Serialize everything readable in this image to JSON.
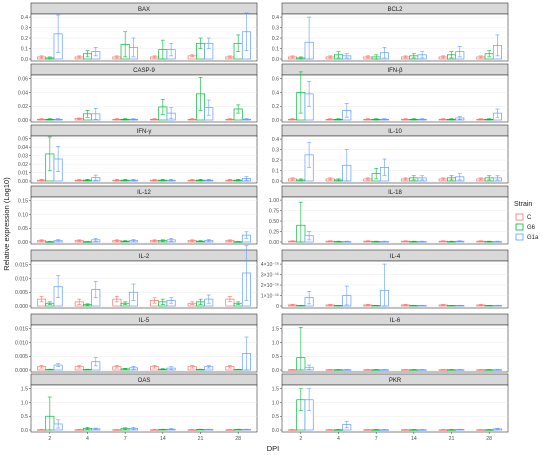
{
  "figure": {
    "ylabel": "Relative expression (Log10)",
    "xlabel": "DPI",
    "legend": {
      "title": "Strain",
      "items": [
        {
          "label": "C",
          "color": "#F8766D"
        },
        {
          "label": "G6",
          "color": "#00BA38"
        },
        {
          "label": "G1a",
          "color": "#619CFF"
        }
      ],
      "placement": "right"
    }
  },
  "chart_data": [
    {
      "type": "bar",
      "title": "BAX",
      "categories": [
        "2",
        "4",
        "7",
        "14",
        "21",
        "28"
      ],
      "yticks": [
        "0.0",
        "0.1",
        "0.2",
        "0.3",
        "0.4"
      ],
      "ylim": [
        0,
        0.45
      ],
      "series": [
        {
          "name": "C",
          "values": [
            0.02,
            0.02,
            0.02,
            0.02,
            0.03,
            0.02
          ]
        },
        {
          "name": "G6",
          "values": [
            0.01,
            0.05,
            0.14,
            0.09,
            0.15,
            0.15
          ]
        },
        {
          "name": "G1a",
          "values": [
            0.24,
            0.07,
            0.11,
            0.09,
            0.15,
            0.26
          ]
        }
      ],
      "errors": [
        [
          0.01,
          0.01,
          0.01,
          0.01,
          0.01,
          0.01
        ],
        [
          0.01,
          0.03,
          0.12,
          0.09,
          0.05,
          0.08
        ],
        [
          0.18,
          0.04,
          0.09,
          0.06,
          0.05,
          0.18
        ]
      ]
    },
    {
      "type": "bar",
      "title": "BCL2",
      "categories": [
        "2",
        "4",
        "7",
        "14",
        "21",
        "28"
      ],
      "yticks": [
        "0.0",
        "0.1",
        "0.2",
        "0.3",
        "0.4"
      ],
      "ylim": [
        0,
        0.45
      ],
      "series": [
        {
          "name": "C",
          "values": [
            0.02,
            0.02,
            0.02,
            0.02,
            0.02,
            0.02
          ]
        },
        {
          "name": "G6",
          "values": [
            0.01,
            0.04,
            0.02,
            0.03,
            0.04,
            0.05
          ]
        },
        {
          "name": "G1a",
          "values": [
            0.16,
            0.03,
            0.06,
            0.04,
            0.07,
            0.13
          ]
        }
      ],
      "errors": [
        [
          0.01,
          0.01,
          0.01,
          0.01,
          0.01,
          0.01
        ],
        [
          0.01,
          0.03,
          0.02,
          0.02,
          0.03,
          0.03
        ],
        [
          0.24,
          0.02,
          0.05,
          0.03,
          0.05,
          0.1
        ]
      ]
    },
    {
      "type": "bar",
      "title": "CASP-9",
      "categories": [
        "2",
        "4",
        "7",
        "14",
        "21",
        "28"
      ],
      "yticks": [
        "0.00",
        "0.02",
        "0.04",
        "0.06"
      ],
      "ylim": [
        0,
        0.07
      ],
      "series": [
        {
          "name": "C",
          "values": [
            0.001,
            0.002,
            0.001,
            0.001,
            0.001,
            0.001
          ]
        },
        {
          "name": "G6",
          "values": [
            0.001,
            0.009,
            0.001,
            0.019,
            0.038,
            0.016
          ]
        },
        {
          "name": "G1a",
          "values": [
            0.001,
            0.009,
            0.001,
            0.01,
            0.018,
            0.001
          ]
        }
      ],
      "errors": [
        [
          0.001,
          0.001,
          0.001,
          0.001,
          0.001,
          0.001
        ],
        [
          0.001,
          0.005,
          0.001,
          0.011,
          0.024,
          0.006
        ],
        [
          0.001,
          0.008,
          0.001,
          0.008,
          0.011,
          0.001
        ]
      ]
    },
    {
      "type": "bar",
      "title": "IFN-β",
      "categories": [
        "2",
        "4",
        "7",
        "14",
        "21",
        "28"
      ],
      "yticks": [
        "0.0",
        "0.2",
        "0.4",
        "0.6"
      ],
      "ylim": [
        0,
        0.75
      ],
      "series": [
        {
          "name": "C",
          "values": [
            0.01,
            0.01,
            0.01,
            0.01,
            0.01,
            0.01
          ]
        },
        {
          "name": "G6",
          "values": [
            0.4,
            0.01,
            0.01,
            0.01,
            0.01,
            0.01
          ]
        },
        {
          "name": "G1a",
          "values": [
            0.38,
            0.14,
            0.01,
            0.01,
            0.03,
            0.1
          ]
        }
      ],
      "errors": [
        [
          0.01,
          0.01,
          0.01,
          0.01,
          0.01,
          0.01
        ],
        [
          0.3,
          0.01,
          0.01,
          0.01,
          0.01,
          0.01
        ],
        [
          0.18,
          0.1,
          0.01,
          0.01,
          0.02,
          0.06
        ]
      ]
    },
    {
      "type": "bar",
      "title": "IFN-γ",
      "categories": [
        "2",
        "4",
        "7",
        "14",
        "21",
        "28"
      ],
      "yticks": [
        "0.00",
        "0.01",
        "0.02",
        "0.03",
        "0.04",
        "0.05"
      ],
      "ylim": [
        0,
        0.058
      ],
      "series": [
        {
          "name": "C",
          "values": [
            0.001,
            0.001,
            0.001,
            0.001,
            0.001,
            0.001
          ]
        },
        {
          "name": "G6",
          "values": [
            0.032,
            0.001,
            0.001,
            0.001,
            0.001,
            0.001
          ]
        },
        {
          "name": "G1a",
          "values": [
            0.026,
            0.004,
            0.001,
            0.001,
            0.001,
            0.003
          ]
        }
      ],
      "errors": [
        [
          0.001,
          0.001,
          0.001,
          0.001,
          0.001,
          0.001
        ],
        [
          0.02,
          0.001,
          0.001,
          0.001,
          0.001,
          0.001
        ],
        [
          0.015,
          0.003,
          0.001,
          0.001,
          0.001,
          0.002
        ]
      ]
    },
    {
      "type": "bar",
      "title": "IL-10",
      "categories": [
        "2",
        "4",
        "7",
        "14",
        "21",
        "28"
      ],
      "yticks": [
        "0.0",
        "0.1",
        "0.2",
        "0.3",
        "0.4"
      ],
      "ylim": [
        0,
        0.42
      ],
      "series": [
        {
          "name": "C",
          "values": [
            0.02,
            0.02,
            0.02,
            0.02,
            0.02,
            0.02
          ]
        },
        {
          "name": "G6",
          "values": [
            0.01,
            0.01,
            0.07,
            0.03,
            0.03,
            0.03
          ]
        },
        {
          "name": "G1a",
          "values": [
            0.25,
            0.15,
            0.13,
            0.03,
            0.04,
            0.03
          ]
        }
      ],
      "errors": [
        [
          0.01,
          0.01,
          0.01,
          0.01,
          0.01,
          0.01
        ],
        [
          0.01,
          0.01,
          0.05,
          0.02,
          0.02,
          0.02
        ],
        [
          0.12,
          0.15,
          0.08,
          0.02,
          0.03,
          0.02
        ]
      ]
    },
    {
      "type": "bar",
      "title": "IL-12",
      "categories": [
        "2",
        "4",
        "7",
        "14",
        "21",
        "28"
      ],
      "yticks": [
        "0.00",
        "0.05",
        "0.10",
        "0.15"
      ],
      "ylim": [
        0,
        0.17
      ],
      "series": [
        {
          "name": "C",
          "values": [
            0.005,
            0.005,
            0.005,
            0.005,
            0.005,
            0.005
          ]
        },
        {
          "name": "G6",
          "values": [
            0.001,
            0.001,
            0.003,
            0.005,
            0.003,
            0.001
          ]
        },
        {
          "name": "G1a",
          "values": [
            0.005,
            0.008,
            0.005,
            0.008,
            0.005,
            0.025
          ]
        }
      ],
      "errors": [
        [
          0.003,
          0.003,
          0.003,
          0.003,
          0.003,
          0.003
        ],
        [
          0.001,
          0.001,
          0.002,
          0.003,
          0.002,
          0.001
        ],
        [
          0.004,
          0.005,
          0.004,
          0.005,
          0.004,
          0.012
        ]
      ]
    },
    {
      "type": "bar",
      "title": "IL-18",
      "categories": [
        "2",
        "4",
        "7",
        "14",
        "21",
        "28"
      ],
      "yticks": [
        "0.00",
        "0.25",
        "0.50",
        "0.75",
        "1.00"
      ],
      "ylim": [
        0,
        1.05
      ],
      "series": [
        {
          "name": "C",
          "values": [
            0.02,
            0.02,
            0.02,
            0.02,
            0.02,
            0.02
          ]
        },
        {
          "name": "G6",
          "values": [
            0.4,
            0.01,
            0.01,
            0.01,
            0.01,
            0.01
          ]
        },
        {
          "name": "G1a",
          "values": [
            0.15,
            0.01,
            0.01,
            0.01,
            0.02,
            0.01
          ]
        }
      ],
      "errors": [
        [
          0.01,
          0.01,
          0.01,
          0.01,
          0.01,
          0.01
        ],
        [
          0.55,
          0.01,
          0.01,
          0.01,
          0.01,
          0.01
        ],
        [
          0.1,
          0.01,
          0.01,
          0.01,
          0.01,
          0.01
        ]
      ]
    },
    {
      "type": "bar",
      "title": "IL-2",
      "categories": [
        "2",
        "4",
        "7",
        "14",
        "21",
        "28"
      ],
      "yticks": [
        "0.000",
        "0.005",
        "0.010",
        "0.015"
      ],
      "ylim": [
        0,
        0.018
      ],
      "series": [
        {
          "name": "C",
          "values": [
            0.0025,
            0.0015,
            0.0025,
            0.002,
            0.001,
            0.0025
          ]
        },
        {
          "name": "G6",
          "values": [
            0.001,
            0.0005,
            0.001,
            0.0015,
            0.0015,
            0.001
          ]
        },
        {
          "name": "G1a",
          "values": [
            0.007,
            0.006,
            0.005,
            0.002,
            0.0025,
            0.012
          ]
        }
      ],
      "errors": [
        [
          0.001,
          0.001,
          0.001,
          0.001,
          0.0005,
          0.001
        ],
        [
          0.0005,
          0.0003,
          0.0005,
          0.001,
          0.001,
          0.0005
        ],
        [
          0.004,
          0.003,
          0.003,
          0.001,
          0.0015,
          0.01
        ]
      ]
    },
    {
      "type": "bar",
      "title": "IL-4",
      "categories": [
        "2",
        "4",
        "7",
        "14",
        "21",
        "28"
      ],
      "yticks": [
        "0",
        "1×10⁻¹⁶",
        "2×10⁻¹⁶",
        "3×10⁻¹⁶",
        "4×10⁻¹⁶"
      ],
      "ylim": [
        0,
        4.3
      ],
      "series": [
        {
          "name": "C",
          "values": [
            0.1,
            0.1,
            0.1,
            0.1,
            0.1,
            0.1
          ]
        },
        {
          "name": "G6",
          "values": [
            0.05,
            0.05,
            0.05,
            0.05,
            0.05,
            0.05
          ]
        },
        {
          "name": "G1a",
          "values": [
            0.8,
            1.0,
            1.5,
            0.05,
            0.05,
            0.05
          ]
        }
      ],
      "errors": [
        [
          0.05,
          0.05,
          0.05,
          0.05,
          0.05,
          0.05
        ],
        [
          0.02,
          0.02,
          0.02,
          0.02,
          0.02,
          0.02
        ],
        [
          0.6,
          0.9,
          2.5,
          0.02,
          0.02,
          0.02
        ]
      ]
    },
    {
      "type": "bar",
      "title": "IL-5",
      "categories": [
        "2",
        "4",
        "7",
        "14",
        "21",
        "28"
      ],
      "yticks": [
        "0.000",
        "0.005",
        "0.010",
        "0.015"
      ],
      "ylim": [
        0,
        0.017
      ],
      "series": [
        {
          "name": "C",
          "values": [
            0.0012,
            0.0012,
            0.0012,
            0.0012,
            0.0012,
            0.0012
          ]
        },
        {
          "name": "G6",
          "values": [
            0.0002,
            0.0002,
            0.0004,
            0.0003,
            0.0002,
            0.0002
          ]
        },
        {
          "name": "G1a",
          "values": [
            0.0018,
            0.003,
            0.0008,
            0.0007,
            0.0012,
            0.006
          ]
        }
      ],
      "errors": [
        [
          0.0005,
          0.0005,
          0.0005,
          0.0005,
          0.0005,
          0.0005
        ],
        [
          0.0001,
          0.0001,
          0.0002,
          0.0002,
          0.0001,
          0.0001
        ],
        [
          0.0005,
          0.0015,
          0.0005,
          0.0005,
          0.0005,
          0.006
        ]
      ]
    },
    {
      "type": "bar",
      "title": "IL-6",
      "categories": [
        "2",
        "4",
        "7",
        "14",
        "21",
        "28"
      ],
      "yticks": [
        "0.0",
        "0.5",
        "1.0",
        "1.5"
      ],
      "ylim": [
        0,
        1.6
      ],
      "series": [
        {
          "name": "C",
          "values": [
            0.01,
            0.01,
            0.01,
            0.01,
            0.01,
            0.01
          ]
        },
        {
          "name": "G6",
          "values": [
            0.45,
            0.01,
            0.01,
            0.01,
            0.01,
            0.01
          ]
        },
        {
          "name": "G1a",
          "values": [
            0.1,
            0.01,
            0.01,
            0.01,
            0.01,
            0.01
          ]
        }
      ],
      "errors": [
        [
          0.01,
          0.01,
          0.01,
          0.01,
          0.01,
          0.01
        ],
        [
          1.1,
          0.01,
          0.01,
          0.01,
          0.01,
          0.01
        ],
        [
          0.08,
          0.01,
          0.01,
          0.01,
          0.01,
          0.01
        ]
      ]
    },
    {
      "type": "bar",
      "title": "OAS",
      "categories": [
        "2",
        "4",
        "7",
        "14",
        "21",
        "28"
      ],
      "yticks": [
        "0.0",
        "0.5",
        "1.0",
        "1.5"
      ],
      "ylim": [
        0,
        1.6
      ],
      "series": [
        {
          "name": "C",
          "values": [
            0.01,
            0.01,
            0.01,
            0.01,
            0.01,
            0.01
          ]
        },
        {
          "name": "G6",
          "values": [
            0.5,
            0.06,
            0.05,
            0.02,
            0.02,
            0.02
          ]
        },
        {
          "name": "G1a",
          "values": [
            0.22,
            0.04,
            0.06,
            0.03,
            0.02,
            0.02
          ]
        }
      ],
      "errors": [
        [
          0.01,
          0.01,
          0.01,
          0.01,
          0.01,
          0.01
        ],
        [
          0.7,
          0.04,
          0.03,
          0.01,
          0.01,
          0.01
        ],
        [
          0.15,
          0.03,
          0.04,
          0.02,
          0.01,
          0.01
        ]
      ]
    },
    {
      "type": "bar",
      "title": "PKR",
      "categories": [
        "2",
        "4",
        "7",
        "14",
        "21",
        "28"
      ],
      "yticks": [
        "0.0",
        "0.5",
        "1.0",
        "1.5"
      ],
      "ylim": [
        0,
        1.6
      ],
      "series": [
        {
          "name": "C",
          "values": [
            0.01,
            0.01,
            0.01,
            0.01,
            0.01,
            0.01
          ]
        },
        {
          "name": "G6",
          "values": [
            1.1,
            0.01,
            0.01,
            0.01,
            0.01,
            0.01
          ]
        },
        {
          "name": "G1a",
          "values": [
            1.1,
            0.2,
            0.01,
            0.01,
            0.02,
            0.04
          ]
        }
      ],
      "errors": [
        [
          0.01,
          0.01,
          0.01,
          0.01,
          0.01,
          0.01
        ],
        [
          0.4,
          0.01,
          0.01,
          0.01,
          0.01,
          0.01
        ],
        [
          0.4,
          0.12,
          0.01,
          0.01,
          0.01,
          0.02
        ]
      ]
    }
  ]
}
